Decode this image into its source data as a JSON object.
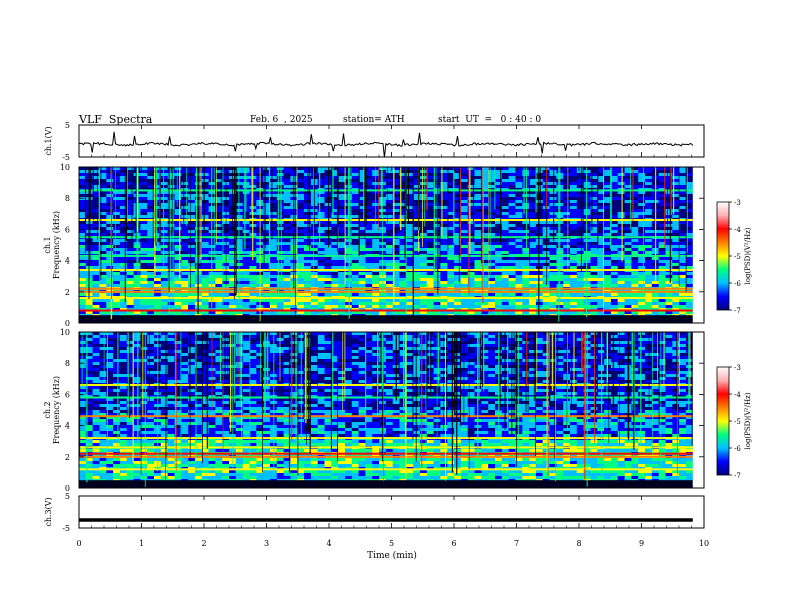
{
  "header": {
    "title": "VLF  Spectra",
    "date": "Feb. 6  , 2025",
    "station": "station= ATH",
    "start": "start  UT  =   0 : 40 : 0"
  },
  "colors": {
    "jet": [
      "#00007f",
      "#0000ff",
      "#00bfff",
      "#00ff80",
      "#ffff00",
      "#ff7f00",
      "#ff0000",
      "#ffb0b0",
      "#ffffff"
    ]
  },
  "chart_data": [
    {
      "type": "line",
      "id": "ch1",
      "ylabel": "ch.1(V)",
      "ylim": [
        -5,
        5
      ],
      "yticks": [
        "5",
        "-5"
      ],
      "xlim": [
        0,
        10
      ],
      "description_trace": "noisy waveform near -1 V with occasional spikes"
    },
    {
      "type": "heatmap",
      "id": "ch1-spectrogram",
      "ylabel_channel": "ch.1",
      "ylabel": "Frequency  (kHz)",
      "ylim": [
        0,
        10
      ],
      "yticks": [
        "0",
        "2",
        "4",
        "6",
        "8",
        "10"
      ],
      "xlim": [
        0,
        10
      ],
      "colorbar": {
        "label": "log(PSD)(V²/Hz)",
        "range": [
          -7,
          -3
        ],
        "ticks": [
          "-3",
          "-4",
          "-5",
          "-6",
          "-7"
        ]
      },
      "bands_khz": [
        {
          "f": 0.8,
          "level": -4.2
        },
        {
          "f": 1.6,
          "level": -5.0
        },
        {
          "f": 2.0,
          "level": -4.6
        },
        {
          "f": 2.2,
          "level": -4.3
        },
        {
          "f": 3.4,
          "level": -5.2
        },
        {
          "f": 4.3,
          "level": -5.6
        },
        {
          "f": 5.5,
          "level": -5.4
        },
        {
          "f": 6.6,
          "level": -5.0
        },
        {
          "f": 8.5,
          "level": -5.6
        }
      ]
    },
    {
      "type": "heatmap",
      "id": "ch2-spectrogram",
      "ylabel_channel": "ch.2",
      "ylabel": "Frequency  (kHz)",
      "ylim": [
        0,
        10
      ],
      "yticks": [
        "0",
        "2",
        "4",
        "6",
        "8",
        "10"
      ],
      "xlim": [
        0,
        10
      ],
      "colorbar": {
        "label": "log(PSD)(V²/Hz)",
        "range": [
          -7,
          -3
        ],
        "ticks": [
          "-3",
          "-4",
          "-5",
          "-6",
          "-7"
        ]
      },
      "bands_khz": [
        {
          "f": 0.4,
          "level": -4.6
        },
        {
          "f": 1.2,
          "level": -5.0
        },
        {
          "f": 2.0,
          "level": -4.4
        },
        {
          "f": 2.2,
          "level": -4.0
        },
        {
          "f": 2.6,
          "level": -4.8
        },
        {
          "f": 3.2,
          "level": -5.0
        },
        {
          "f": 4.6,
          "level": -4.6
        },
        {
          "f": 5.8,
          "level": -5.4
        },
        {
          "f": 6.6,
          "level": -5.2
        }
      ]
    },
    {
      "type": "line",
      "id": "ch3",
      "ylabel": "ch.3(V)",
      "ylim": [
        -5,
        5
      ],
      "yticks": [
        "5",
        "-5"
      ],
      "xlim": [
        0,
        10
      ],
      "xlabel": "Time  (min)",
      "xticks": [
        "0",
        "1",
        "2",
        "3",
        "4",
        "5",
        "6",
        "7",
        "8",
        "9",
        "10"
      ],
      "description_trace": "flat thick trace near -2.5 V"
    }
  ]
}
